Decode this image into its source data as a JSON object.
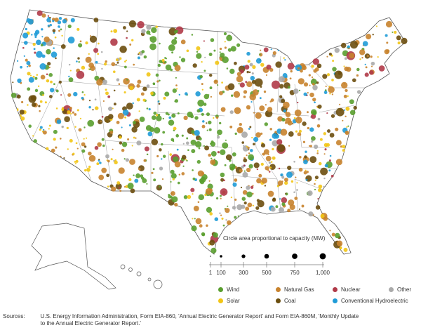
{
  "legend": {
    "size_title": "Circle area proportional to capacity (MW)",
    "size_scale": [
      {
        "label": "1",
        "mw": 1
      },
      {
        "label": "100",
        "mw": 100
      },
      {
        "label": "300",
        "mw": 300
      },
      {
        "label": "500",
        "mw": 500
      },
      {
        "label": "750",
        "mw": 750
      },
      {
        "label": "1,000",
        "mw": 1000
      }
    ],
    "categories": [
      {
        "label": "Wind",
        "color": "#5a9e2f"
      },
      {
        "label": "Natural Gas",
        "color": "#c8832e"
      },
      {
        "label": "Nuclear",
        "color": "#b03a48"
      },
      {
        "label": "Other",
        "color": "#aaaaaa"
      },
      {
        "label": "Solar",
        "color": "#f2c515"
      },
      {
        "label": "Coal",
        "color": "#6b4e0e"
      },
      {
        "label": "Conventional Hydroelectric",
        "color": "#1f9bd7"
      }
    ]
  },
  "sources": {
    "label": "Sources:",
    "text": "U.S. Energy Information Administration, Form EIA-860, 'Annual Electric Generator Report' and Form EIA-860M, 'Monthly Update to the Annual Electric Generator Report.'"
  }
}
